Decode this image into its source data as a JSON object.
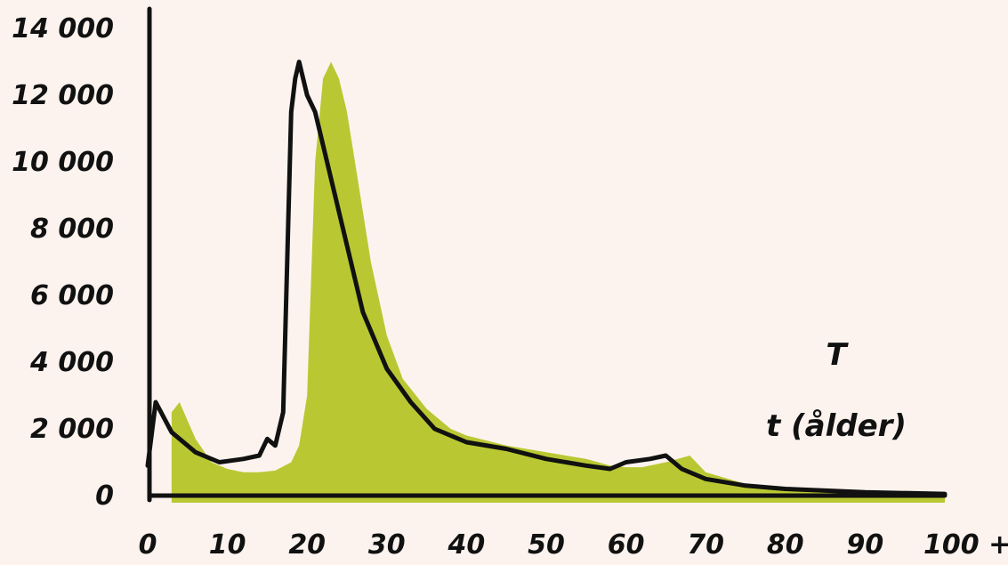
{
  "chart_data": {
    "type": "area",
    "title": "",
    "xlabel": "",
    "ylabel": "",
    "xlim": [
      0,
      100
    ],
    "ylim": [
      0,
      14000
    ],
    "y_ticks": [
      "14 000",
      "12 000",
      "10 000",
      "8 000",
      "6 000",
      "4 000",
      "2 000",
      "0"
    ],
    "y_tick_values": [
      14000,
      12000,
      10000,
      8000,
      6000,
      4000,
      2000,
      0
    ],
    "x_ticks": [
      "0",
      "10",
      "20",
      "30",
      "40",
      "50",
      "60",
      "70",
      "80",
      "90",
      "100 +"
    ],
    "x_tick_values": [
      0,
      10,
      20,
      30,
      40,
      50,
      60,
      70,
      80,
      90,
      100
    ],
    "annotations": [
      "T",
      "t (ålder)"
    ],
    "grid": false,
    "colors": {
      "area": "#b9c832",
      "line": "#111111",
      "axis": "#111111",
      "background": "#fcf3ee"
    },
    "series": [
      {
        "kind": "area",
        "x": [
          3,
          4,
          6,
          8,
          10,
          12,
          14,
          16,
          18,
          19,
          20,
          21,
          22,
          23,
          24,
          25,
          26,
          28,
          30,
          32,
          35,
          38,
          40,
          45,
          50,
          55,
          58,
          60,
          62,
          65,
          68,
          70,
          75,
          80,
          90,
          100
        ],
        "y": [
          2500,
          2800,
          1700,
          1000,
          800,
          700,
          700,
          750,
          1000,
          1500,
          3000,
          10000,
          12500,
          13000,
          12500,
          11500,
          10000,
          7000,
          4800,
          3500,
          2600,
          2000,
          1800,
          1500,
          1300,
          1100,
          900,
          850,
          850,
          1000,
          1200,
          700,
          350,
          200,
          100,
          50
        ]
      },
      {
        "kind": "line",
        "x": [
          0,
          1,
          3,
          6,
          9,
          12,
          14,
          15,
          16,
          17,
          18,
          18.5,
          19,
          20,
          21,
          23,
          25,
          27,
          30,
          33,
          36,
          40,
          45,
          50,
          55,
          58,
          60,
          63,
          65,
          67,
          70,
          75,
          80,
          90,
          100
        ],
        "y": [
          900,
          2800,
          1900,
          1300,
          1000,
          1100,
          1200,
          1700,
          1500,
          2500,
          11500,
          12500,
          13000,
          12000,
          11500,
          9500,
          7500,
          5500,
          3800,
          2800,
          2000,
          1600,
          1400,
          1100,
          900,
          800,
          1000,
          1100,
          1200,
          800,
          500,
          300,
          200,
          100,
          50
        ]
      }
    ]
  }
}
